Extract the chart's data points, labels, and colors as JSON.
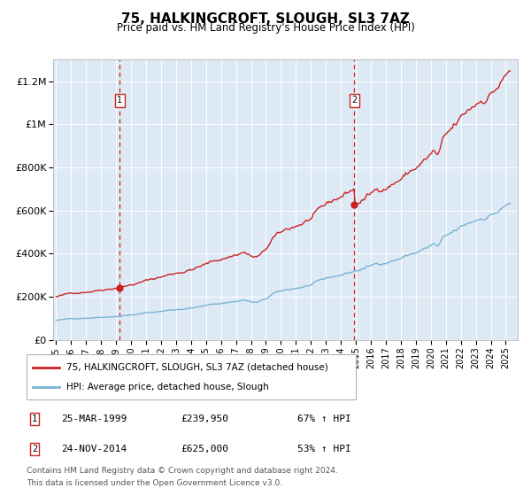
{
  "title": "75, HALKINGCROFT, SLOUGH, SL3 7AZ",
  "subtitle": "Price paid vs. HM Land Registry's House Price Index (HPI)",
  "legend_line1": "75, HALKINGCROFT, SLOUGH, SL3 7AZ (detached house)",
  "legend_line2": "HPI: Average price, detached house, Slough",
  "annotation1_date": "25-MAR-1999",
  "annotation1_price": "£239,950",
  "annotation1_hpi": "67% ↑ HPI",
  "annotation2_date": "24-NOV-2014",
  "annotation2_price": "£625,000",
  "annotation2_hpi": "53% ↑ HPI",
  "footnote_line1": "Contains HM Land Registry data © Crown copyright and database right 2024.",
  "footnote_line2": "This data is licensed under the Open Government Licence v3.0.",
  "hpi_color": "#7ab3d4",
  "price_color": "#cc2222",
  "dot_color": "#cc2222",
  "bg_color": "#ddeaf5",
  "grid_color": "#ffffff",
  "vline_color": "#cc2222",
  "ylim": [
    0,
    1300000
  ],
  "yticks": [
    0,
    200000,
    400000,
    600000,
    800000,
    1000000,
    1200000
  ],
  "ytick_labels": [
    "£0",
    "£200K",
    "£400K",
    "£600K",
    "£800K",
    "£1M",
    "£1.2M"
  ],
  "sale1_x": 1999.23,
  "sale1_y": 239950,
  "sale2_x": 2014.9,
  "sale2_y": 625000,
  "xmin": 1994.8,
  "xmax": 2025.8
}
